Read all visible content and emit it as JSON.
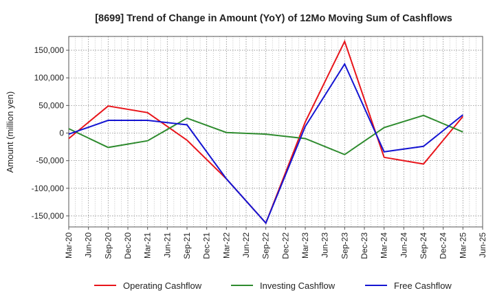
{
  "chart_data": {
    "type": "line",
    "title": "[8699]  Trend of Change in Amount (YoY) of 12Mo Moving Sum of Cashflows",
    "xlabel": "",
    "ylabel": "Amount (million yen)",
    "ylim": [
      -170000,
      175000
    ],
    "yticks": [
      150000,
      100000,
      50000,
      0,
      -50000,
      -100000,
      -150000
    ],
    "ytick_labels": [
      "150,000",
      "100,000",
      "50,000",
      "0",
      "-50,000",
      "-100,000",
      "-150,000"
    ],
    "categories": [
      "Mar-20",
      "Jun-20",
      "Sep-20",
      "Dec-20",
      "Mar-21",
      "Jun-21",
      "Sep-21",
      "Dec-21",
      "Mar-22",
      "Jun-22",
      "Sep-22",
      "Dec-22",
      "Mar-23",
      "Jun-23",
      "Sep-23",
      "Dec-23",
      "Mar-24",
      "Jun-24",
      "Sep-24",
      "Dec-24",
      "Mar-25",
      "Jun-25"
    ],
    "grid": true,
    "legend_position": "bottom",
    "series": [
      {
        "name": "Operating Cashflow",
        "color": "#e8141a",
        "values": [
          -10000,
          null,
          49000,
          null,
          37000,
          null,
          -13000,
          null,
          -83000,
          null,
          -163000,
          null,
          20000,
          null,
          166000,
          null,
          -44000,
          null,
          -56000,
          null,
          30000,
          null
        ]
      },
      {
        "name": "Investing Cashflow",
        "color": "#2e8b2e",
        "values": [
          8000,
          null,
          -26000,
          null,
          -14000,
          null,
          27000,
          null,
          1000,
          null,
          -2000,
          null,
          -10000,
          null,
          -39000,
          null,
          10000,
          null,
          32000,
          null,
          2000,
          null
        ]
      },
      {
        "name": "Free Cashflow",
        "color": "#1414d2",
        "values": [
          -2000,
          null,
          23000,
          null,
          23000,
          null,
          15000,
          null,
          -83000,
          null,
          -163000,
          null,
          12000,
          null,
          125000,
          null,
          -34000,
          null,
          -24000,
          null,
          33000,
          null
        ]
      }
    ]
  }
}
